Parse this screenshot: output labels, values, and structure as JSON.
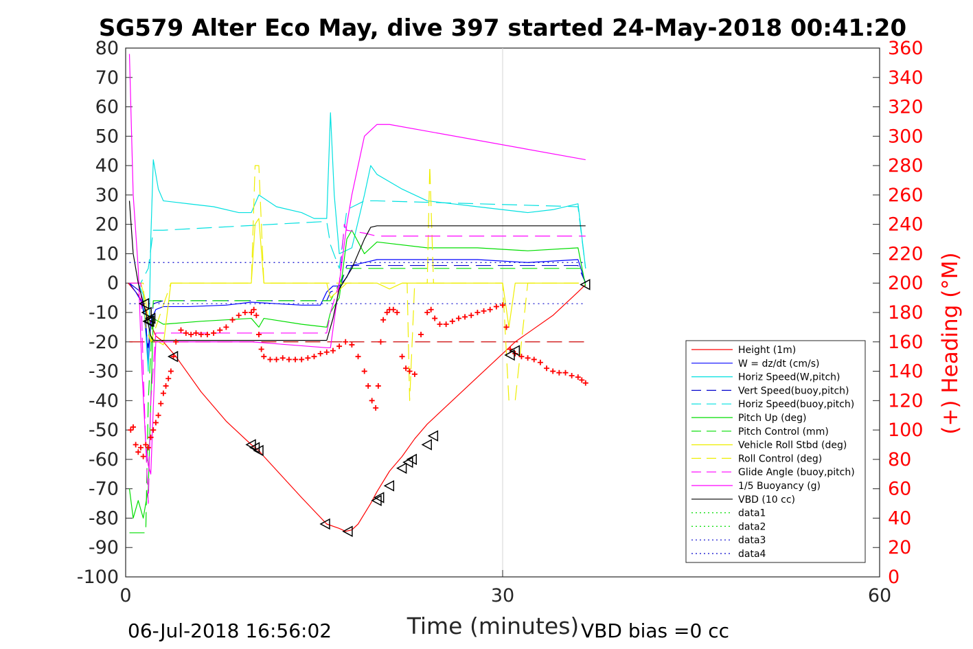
{
  "chart_data": {
    "type": "line",
    "title": "SG579 Alter Eco May, dive 397 started 24-May-2018 00:41:20",
    "xlabel": "Time (minutes)",
    "ylabel": "",
    "y2label": "(+) Heading (°M)",
    "xlim": [
      0,
      60
    ],
    "ylim": [
      -100,
      80
    ],
    "y2lim": [
      0,
      360
    ],
    "x_ticks": [
      0,
      30,
      60
    ],
    "y_ticks": [
      80,
      70,
      60,
      50,
      40,
      30,
      20,
      10,
      0,
      -10,
      -20,
      -30,
      -40,
      -50,
      -60,
      -70,
      -80,
      -90,
      -100
    ],
    "y2_ticks": [
      360,
      340,
      320,
      300,
      280,
      260,
      240,
      220,
      200,
      180,
      160,
      140,
      120,
      100,
      80,
      60,
      40,
      20,
      0
    ],
    "grid": "x-only",
    "legend_position": "bottom-right",
    "footer_left": "06-Jul-2018 16:56:02",
    "footer_right": "VBD bias =0 cc",
    "series": [
      {
        "name": "Height (1m)",
        "color": "#ff0000",
        "style": "solid",
        "x": [
          0.2,
          1.0,
          1.6,
          2.0,
          2.4,
          3.0,
          4.0,
          6.0,
          8.0,
          10.0,
          10.6,
          11.0,
          14.0,
          16.0,
          17.0,
          17.5,
          18.0,
          18.5,
          19.5,
          20.0,
          21.0,
          22.0,
          23.0,
          24.0,
          26.0,
          28.0,
          30.0,
          31.0,
          32.0,
          34.0,
          36.0,
          36.6
        ],
        "y": [
          0,
          -4,
          -9,
          -14,
          -18,
          -20,
          -25,
          -37,
          -47,
          -55,
          -57,
          -59,
          -73,
          -82,
          -83.5,
          -84.5,
          -84,
          -82,
          -75,
          -71,
          -64,
          -59,
          -53,
          -48,
          -40,
          -32,
          -24,
          -20,
          -17,
          -11,
          -3,
          -0.5
        ]
      },
      {
        "name": "W = dz/dt (cm/s)",
        "color": "#0000ff",
        "style": "solid",
        "x": [
          0.3,
          0.8,
          1.2,
          1.6,
          1.8,
          2.0,
          2.4,
          3.0,
          5.0,
          8.0,
          10.0,
          12.0,
          14.0,
          15.5,
          16.0,
          16.5,
          17.0,
          17.6,
          18.0,
          19.0,
          20.0,
          24.0,
          28.0,
          32.0,
          36.0,
          36.6
        ],
        "y": [
          0,
          -3,
          -6,
          -12,
          -28,
          -13,
          -9,
          -8,
          -8,
          -7.5,
          -6.5,
          -7,
          -7.5,
          -7.5,
          -3,
          -1,
          -1,
          2,
          6,
          7,
          8,
          8,
          8,
          7,
          8,
          0
        ]
      },
      {
        "name": "Horiz Speed(W,pitch)",
        "color": "#00e0e0",
        "style": "solid",
        "x": [
          0.3,
          1.0,
          1.4,
          1.8,
          2.0,
          2.2,
          2.6,
          3.0,
          5.0,
          7.0,
          9.0,
          10.0,
          10.6,
          12.0,
          14.0,
          15.0,
          16.0,
          16.3,
          16.6,
          17.0,
          18.0,
          19.0,
          19.5,
          20.0,
          22.0,
          24.0,
          28.0,
          32.0,
          34.0,
          36.0,
          36.6
        ],
        "y": [
          0,
          0,
          -4,
          -30,
          15,
          42,
          32,
          28,
          27,
          26,
          24,
          24,
          30,
          26,
          24,
          22,
          22,
          58,
          30,
          10,
          12,
          30,
          40,
          37,
          32,
          28,
          26,
          24,
          25,
          27,
          5
        ]
      },
      {
        "name": "Vert Speed(buoy,pitch)",
        "color": "#0000cc",
        "style": "dashed",
        "x": [
          0.3,
          1.2,
          1.8,
          2.2,
          3.0,
          16.0,
          16.3,
          17.0,
          17.6,
          19.0,
          36.0,
          36.6
        ],
        "y": [
          0,
          -3,
          -22,
          -7,
          -6,
          -6,
          -3,
          -2,
          6,
          6,
          6,
          0
        ]
      },
      {
        "name": "Horiz Speed(buoy,pitch)",
        "color": "#00e0e0",
        "style": "dashed",
        "x": [
          0.3,
          1.2,
          1.8,
          2.2,
          3.0,
          16.0,
          16.3,
          17.0,
          17.6,
          19.0,
          20.0,
          28.0,
          36.0,
          36.6
        ],
        "y": [
          0,
          0,
          5,
          18,
          18,
          21,
          13,
          5,
          25,
          28,
          28,
          27,
          26,
          5
        ]
      },
      {
        "name": "Pitch Up (deg)",
        "color": "#00dd00",
        "style": "solid",
        "x": [
          0.3,
          0.6,
          1.0,
          1.4,
          1.8,
          2.0,
          2.2,
          2.6,
          3.0,
          6.0,
          10.0,
          10.6,
          11.0,
          14.0,
          16.0,
          16.3,
          17.0,
          17.6,
          18.0,
          19.0,
          20.0,
          24.0,
          28.0,
          32.0,
          36.0,
          36.6
        ],
        "y": [
          -70,
          -80,
          -74,
          -80,
          -70,
          -40,
          -12,
          -13,
          -14,
          -13,
          -12,
          -15,
          -12,
          -14,
          -15,
          -10,
          -5,
          15,
          18,
          10,
          14,
          12,
          12,
          11,
          12,
          -1
        ]
      },
      {
        "name": "Pitch Control (mm)",
        "color": "#00dd00",
        "style": "dashed",
        "x": [
          0.3,
          1.6,
          1.8,
          2.2,
          16.0,
          16.3,
          17.6,
          18.0,
          36.6
        ],
        "y": [
          -85,
          -85,
          -40,
          -6,
          -6,
          -6,
          5,
          5,
          5
        ]
      },
      {
        "name": "Vehicle Roll Stbd (deg)",
        "color": "#eeee00",
        "style": "solid",
        "x": [
          0.3,
          1.2,
          1.6,
          2.0,
          2.2,
          3.0,
          3.6,
          10.0,
          10.3,
          10.6,
          11.0,
          16.0,
          16.3,
          17.6,
          18.0,
          20.0,
          21.0,
          22.0,
          23.0,
          24.0,
          29.0,
          30.0,
          30.5,
          31.0,
          32.0,
          36.0
        ],
        "y": [
          0,
          0,
          -6,
          -20,
          -19,
          -21,
          0,
          0,
          20,
          22,
          0,
          0,
          -5,
          0,
          0,
          0,
          -2,
          0,
          0,
          0,
          0,
          0,
          -15,
          0,
          0,
          0
        ]
      },
      {
        "name": "Roll Control (deg)",
        "color": "#eeee00",
        "style": "dashed",
        "x": [
          0.3,
          1.4,
          1.6,
          2.0,
          3.6,
          10.0,
          10.3,
          10.6,
          11.0,
          20.0,
          21.0,
          22.4,
          22.6,
          23.0,
          24.0,
          24.2,
          24.5,
          30.0,
          30.5,
          31.0,
          32.0,
          36.6
        ],
        "y": [
          0,
          0,
          -15,
          -20,
          0,
          0,
          40,
          40,
          0,
          0,
          0,
          0,
          -40,
          0,
          0,
          40,
          0,
          0,
          -40,
          -40,
          0,
          0
        ]
      },
      {
        "name": "Glide Angle (buoy,pitch)",
        "color": "#ff00ff",
        "style": "dashed",
        "x": [
          0.3,
          1.2,
          1.4,
          1.6,
          1.8,
          2.0,
          2.4,
          3.0,
          10.0,
          11.0,
          16.0,
          16.3,
          17.0,
          17.4,
          17.6,
          19.0,
          20.0,
          36.6
        ],
        "y": [
          0,
          0,
          -30,
          -55,
          -75,
          -40,
          -17,
          -17,
          -17,
          -17,
          -17,
          -10,
          0,
          20,
          18,
          17,
          16,
          16
        ]
      },
      {
        "name": "1/5 Buoyancy (g)",
        "color": "#ff00ff",
        "style": "solid",
        "x": [
          0.3,
          0.6,
          1.0,
          1.3,
          1.6,
          1.8,
          2.0,
          2.4,
          3.0,
          10.0,
          16.0,
          16.3,
          17.0,
          17.6,
          18.0,
          19.0,
          20.0,
          21.0,
          36.6
        ],
        "y": [
          78,
          30,
          5,
          -30,
          -55,
          -62,
          -65,
          -20,
          -20,
          -20,
          -22,
          -22,
          0,
          20,
          30,
          50,
          54,
          54,
          42
        ]
      },
      {
        "name": "VBD (10 cc)",
        "color": "#000000",
        "style": "solid",
        "x": [
          0.3,
          0.6,
          1.0,
          1.6,
          2.0,
          2.2,
          3.0,
          10.0,
          16.0,
          16.5,
          17.0,
          18.0,
          19.0,
          19.5,
          20.0,
          36.6
        ],
        "y": [
          28,
          10,
          0,
          -10,
          -18,
          -19.5,
          -19.5,
          -19.5,
          -19.5,
          -12,
          -2,
          5,
          15,
          19,
          19.5,
          19.5
        ]
      },
      {
        "name": "data1",
        "color": "#00dd00",
        "style": "dotted",
        "x": [],
        "y": []
      },
      {
        "name": "data2",
        "color": "#00dd00",
        "style": "dotted",
        "x": [],
        "y": []
      },
      {
        "name": "data3",
        "color": "#0000cc",
        "style": "dotted",
        "x": [
          0.3,
          36.6
        ],
        "y": [
          7,
          7
        ]
      },
      {
        "name": "data4",
        "color": "#0000cc",
        "style": "dotted",
        "x": [
          0.3,
          36.6
        ],
        "y": [
          -7,
          -7
        ]
      }
    ],
    "reference_line": {
      "color": "#cc0000",
      "style": "dashed",
      "x": [
        0.3,
        36.6
      ],
      "y": [
        -20,
        -20
      ]
    },
    "heading_points": {
      "color": "#ff0000",
      "marker": "+",
      "x": [
        0.4,
        0.6,
        0.8,
        1.0,
        1.2,
        1.4,
        1.6,
        1.8,
        2.0,
        2.2,
        2.4,
        2.6,
        2.8,
        3.0,
        3.2,
        3.4,
        3.6,
        3.8,
        4.0,
        4.4,
        4.8,
        5.2,
        5.6,
        6.0,
        6.5,
        7.0,
        7.5,
        8.0,
        8.5,
        9.0,
        9.5,
        10.0,
        10.2,
        10.4,
        10.6,
        10.8,
        11.0,
        11.5,
        12.0,
        12.5,
        13.0,
        13.5,
        14.0,
        14.5,
        15.0,
        15.5,
        16.0,
        16.5,
        17.0,
        17.5,
        18.0,
        18.5,
        19.0,
        19.3,
        19.6,
        19.9,
        20.1,
        20.3,
        20.5,
        20.8,
        21.0,
        21.3,
        21.6,
        22.0,
        22.3,
        22.6,
        23.0,
        23.5,
        24.0,
        24.3,
        24.6,
        25.0,
        25.5,
        26.0,
        26.5,
        27.0,
        27.5,
        28.0,
        28.5,
        29.0,
        29.5,
        30.0,
        30.3,
        30.6,
        31.0,
        31.5,
        32.0,
        32.5,
        33.0,
        33.5,
        34.0,
        34.5,
        35.0,
        35.5,
        36.0,
        36.3,
        36.6
      ],
      "y": [
        100,
        102,
        90,
        85,
        88,
        82,
        90,
        88,
        95,
        100,
        105,
        110,
        118,
        125,
        130,
        135,
        140,
        150,
        160,
        168,
        166,
        165,
        166,
        165,
        165,
        166,
        168,
        170,
        175,
        178,
        180,
        180,
        182,
        178,
        165,
        155,
        150,
        148,
        148,
        149,
        148,
        148,
        148,
        149,
        150,
        152,
        153,
        154,
        157,
        160,
        158,
        150,
        140,
        130,
        120,
        115,
        130,
        160,
        175,
        180,
        182,
        182,
        180,
        150,
        142,
        140,
        138,
        165,
        180,
        182,
        176,
        172,
        172,
        174,
        176,
        177,
        178,
        180,
        181,
        182,
        184,
        185,
        170,
        155,
        152,
        150,
        149,
        148,
        146,
        142,
        140,
        139,
        139,
        137,
        136,
        134,
        132
      ]
    },
    "triangle_markers": {
      "color": "#000000",
      "x": [
        1.5,
        1.7,
        1.8,
        1.9,
        2.0,
        3.8,
        10.0,
        10.3,
        10.6,
        15.9,
        17.7,
        20.0,
        20.2,
        21.0,
        22.0,
        22.5,
        22.8,
        24.0,
        24.5,
        30.6,
        31.0,
        36.6
      ],
      "y": [
        -7,
        -10,
        -13,
        -13,
        -12,
        -25,
        -55,
        -56,
        -57,
        -82,
        -84.5,
        -74,
        -73,
        -69,
        -63,
        -61,
        -60,
        -55,
        -52,
        -24.5,
        -23,
        -0.5
      ]
    }
  }
}
